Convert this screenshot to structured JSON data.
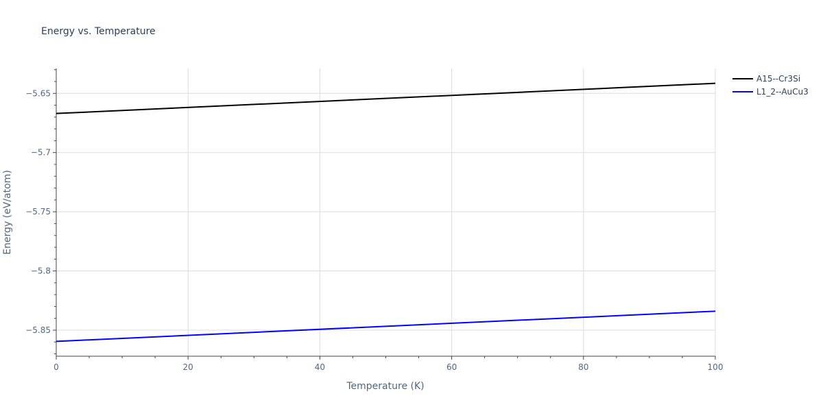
{
  "chart_data": {
    "type": "line",
    "title": "Energy vs. Temperature",
    "xlabel": "Temperature (K)",
    "ylabel": "Energy (eV/atom)",
    "xlim": [
      0,
      100
    ],
    "ylim": [
      -5.872,
      -5.629
    ],
    "x_ticks": [
      0,
      20,
      40,
      60,
      80,
      100
    ],
    "x_tick_labels": [
      "0",
      "20",
      "40",
      "60",
      "80",
      "100"
    ],
    "y_ticks": [
      -5.85,
      -5.8,
      -5.75,
      -5.7,
      -5.65
    ],
    "y_tick_labels": [
      "−5.85",
      "−5.8",
      "−5.75",
      "−5.7",
      "−5.65"
    ],
    "grid": true,
    "legend_position": "top-right",
    "series": [
      {
        "name": "A15--Cr3Si",
        "color": "#000000",
        "x": [
          0,
          100
        ],
        "y": [
          -5.667,
          -5.6415
        ]
      },
      {
        "name": "L1_2--AuCu3",
        "color": "#0000ff",
        "x": [
          0,
          100
        ],
        "y": [
          -5.8595,
          -5.834
        ]
      }
    ]
  }
}
